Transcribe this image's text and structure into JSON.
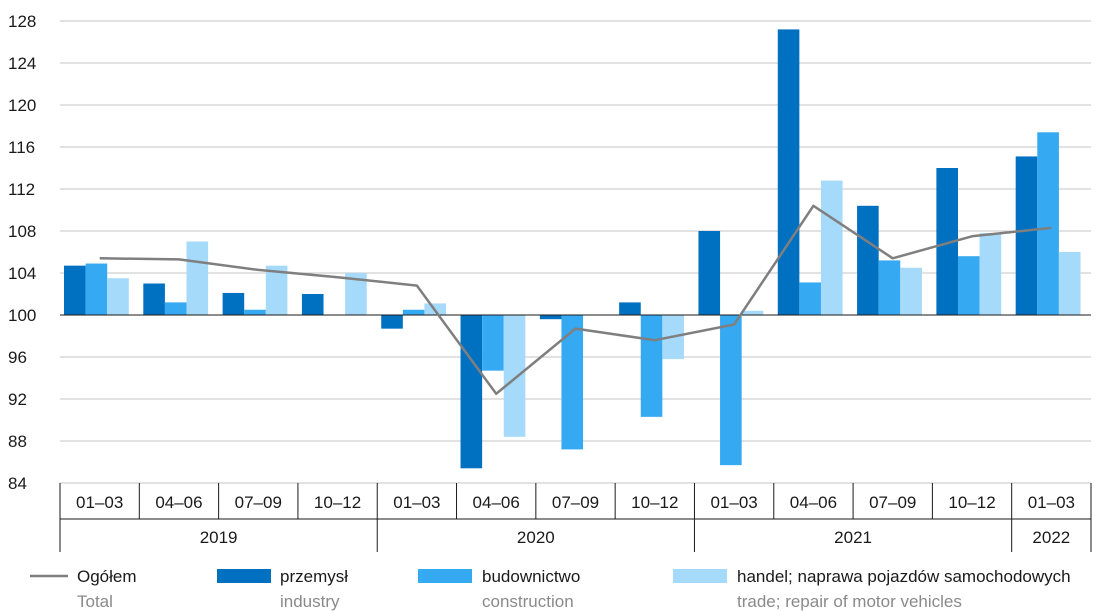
{
  "chart_data": {
    "type": "bar",
    "title": "",
    "xlabel": "",
    "ylabel": "",
    "ylim": [
      84,
      128
    ],
    "yticks": [
      84,
      88,
      92,
      96,
      100,
      104,
      108,
      112,
      116,
      120,
      124,
      128
    ],
    "baseline": 100,
    "grid": true,
    "legend_position": "bottom",
    "categories": [
      "01–03",
      "04–06",
      "07–09",
      "10–12",
      "01–03",
      "04–06",
      "07–09",
      "10–12",
      "01–03",
      "04–06",
      "07–09",
      "10–12",
      "01–03"
    ],
    "groups": [
      {
        "label": "2019",
        "count": 4
      },
      {
        "label": "2020",
        "count": 4
      },
      {
        "label": "2021",
        "count": 4
      },
      {
        "label": "2022",
        "count": 1
      }
    ],
    "series": [
      {
        "name": "przemysł",
        "name_en": "industry",
        "type": "bar",
        "color": "#0070c0",
        "values": [
          104.7,
          103.0,
          102.1,
          102.0,
          98.7,
          85.4,
          99.6,
          101.2,
          108.0,
          127.2,
          110.4,
          114.0,
          115.1
        ]
      },
      {
        "name": "budownictwo",
        "name_en": "construction",
        "type": "bar",
        "color": "#35a9f2",
        "values": [
          104.9,
          101.2,
          100.5,
          null,
          100.5,
          94.7,
          87.2,
          90.3,
          85.7,
          103.1,
          105.2,
          105.6,
          117.4
        ]
      },
      {
        "name": "handel; naprawa pojazdów samochodowych",
        "name_en": "trade; repair of motor vehicles",
        "type": "bar",
        "color": "#a6dafa",
        "values": [
          103.5,
          107.0,
          104.7,
          104.0,
          101.1,
          88.4,
          null,
          95.8,
          100.4,
          112.8,
          104.5,
          107.8,
          106.0
        ]
      },
      {
        "name": "Ogółem",
        "name_en": "Total",
        "type": "line",
        "color": "#7f7f7f",
        "values": [
          105.4,
          105.3,
          104.3,
          103.6,
          102.8,
          92.5,
          98.7,
          97.6,
          99.1,
          110.4,
          105.4,
          107.5,
          108.3
        ]
      }
    ]
  }
}
